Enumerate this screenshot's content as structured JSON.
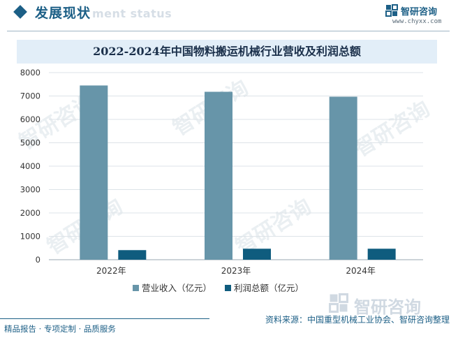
{
  "header": {
    "section_title": "发展现状",
    "section_subtitle_ghost": "ment status",
    "brand_name": "智研咨询",
    "brand_url": "www.chyxx.com"
  },
  "watermark_text": "智研咨询",
  "chart_data": {
    "type": "bar",
    "title": "2022-2024年中国物料搬运机械行业营收及利润总额",
    "categories": [
      "2022年",
      "2023年",
      "2024年"
    ],
    "series": [
      {
        "name": "营业收入（亿元）",
        "values": [
          7450,
          7180,
          6970
        ],
        "color": "#6795a9"
      },
      {
        "name": "利润总额（亿元）",
        "values": [
          410,
          470,
          470
        ],
        "color": "#0f5c7e"
      }
    ],
    "ylim": [
      0,
      8000
    ],
    "yticks": [
      "0",
      "1000",
      "2000",
      "3000",
      "4000",
      "5000",
      "6000",
      "7000",
      "8000"
    ],
    "grid": true,
    "legend_position": "bottom"
  },
  "footer": {
    "left": "精品报告 · 专项定制 · 品质服务",
    "right": "资料来源：中国重型机械工业协会、智研咨询整理"
  }
}
